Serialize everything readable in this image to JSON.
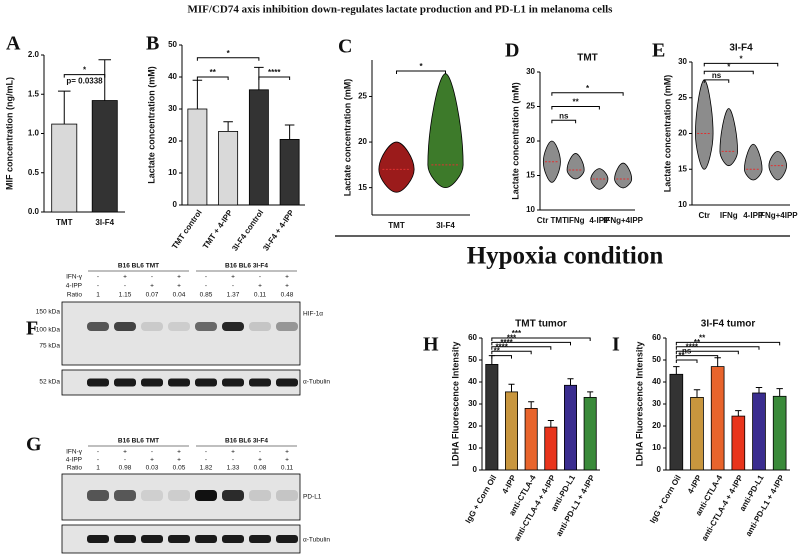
{
  "title": "MIF/CD74 axis inhibition down-regulates lactate production and PD-L1 in melanoma cells",
  "section_label": "Hypoxia condition",
  "panel_labels": [
    "A",
    "B",
    "C",
    "D",
    "E",
    "F",
    "G",
    "H",
    "I"
  ],
  "chart_data": [
    {
      "type": "bar",
      "ylabel": "MIF concentration (ng/mL)",
      "categories": [
        "TMT",
        "3I-F4"
      ],
      "values": [
        1.12,
        1.42
      ],
      "errors": [
        0.42,
        0.52
      ],
      "colors": [
        "#d9d9d9",
        "#333333"
      ],
      "ylim": [
        0,
        2
      ],
      "yticks": [
        {
          "value": 0,
          "label": "0.0"
        },
        0.5,
        {
          "value": 1,
          "label": "1.0"
        },
        1.5,
        {
          "value": 2,
          "label": "2.0"
        }
      ],
      "annotations": [
        "*",
        "p= 0.0338"
      ]
    },
    {
      "type": "bar",
      "ylabel": "Lactate concentration (mM)",
      "categories": [
        "TMT control",
        "TMT + 4-IPP",
        "3I-F4 control",
        "3I-F4 + 4-IPP"
      ],
      "values": [
        30,
        23,
        36,
        20.5
      ],
      "errors": [
        9,
        3,
        7,
        4.5
      ],
      "colors": [
        "#d9d9d9",
        "#d9d9d9",
        "#333333",
        "#333333"
      ],
      "ylim": [
        0,
        50
      ],
      "yticks": [
        0,
        10,
        20,
        30,
        40,
        50
      ],
      "annotations": [
        "**",
        "*",
        "****"
      ]
    },
    {
      "type": "violin",
      "ylabel": "Lactate concentration (mM)",
      "categories": [
        "TMT",
        "3I-F4"
      ],
      "min": [
        14.5,
        15
      ],
      "median": [
        17,
        17.5
      ],
      "max": [
        20,
        27.5
      ],
      "colors": [
        "#9b1b1b",
        "#3d7a2a"
      ],
      "ylim": [
        12,
        29
      ],
      "yticks": [
        15,
        20,
        25
      ],
      "annotations": [
        "*"
      ]
    },
    {
      "type": "violin",
      "title": "TMT",
      "ylabel": "Lactate concentration (mM)",
      "categories": [
        "Ctr TMT",
        "IFNg",
        "4-IPP",
        "IFNg+4IPP"
      ],
      "min": [
        14,
        14.5,
        13,
        13.2
      ],
      "median": [
        17,
        15.8,
        14.5,
        14.5
      ],
      "max": [
        20,
        18.2,
        16,
        16.8
      ],
      "colors": [
        "#8c8c8c",
        "#8c8c8c",
        "#8c8c8c",
        "#8c8c8c"
      ],
      "ylim": [
        10,
        30
      ],
      "yticks": [
        10,
        15,
        20,
        25,
        30
      ],
      "annotations": [
        "ns",
        "**",
        "*"
      ]
    },
    {
      "type": "violin",
      "title": "3I-F4",
      "ylabel": "Lactate concentration (mM)",
      "categories": [
        "Ctr",
        "IFNg",
        "4-IPP",
        "IFNg+4IPP"
      ],
      "min": [
        15,
        15.5,
        13.5,
        13.5
      ],
      "median": [
        20,
        17.5,
        15,
        15.5
      ],
      "max": [
        27.5,
        23.5,
        18.5,
        17.5
      ],
      "colors": [
        "#8c8c8c",
        "#8c8c8c",
        "#8c8c8c",
        "#8c8c8c"
      ],
      "ylim": [
        10,
        30
      ],
      "yticks": [
        10,
        15,
        20,
        25,
        30
      ],
      "annotations": [
        "ns",
        "*",
        "*"
      ]
    },
    {
      "type": "bar",
      "title": "TMT tumor",
      "ylabel": "LDHA Fluorescence Intensity",
      "categories": [
        "IgG + Corn Oil",
        "4-IPP",
        "anti-CTLA-4",
        "anti-CTLA-4 + 4-IPP",
        "anti-PD-L1",
        "anti-PD-L1 + 4-IPP"
      ],
      "values": [
        48,
        35.5,
        28,
        19.5,
        38.5,
        33
      ],
      "errors": [
        4,
        3.5,
        3,
        3,
        3,
        2.5
      ],
      "colors": [
        "#333333",
        "#c8963e",
        "#e8642c",
        "#e8341c",
        "#3a2d8f",
        "#3a8a3a"
      ],
      "ylim": [
        0,
        60
      ],
      "yticks": [
        0,
        10,
        20,
        30,
        40,
        50,
        60
      ],
      "annotations": [
        "**",
        "****",
        "****",
        "***",
        "***"
      ]
    },
    {
      "type": "bar",
      "title": "3I-F4 tumor",
      "ylabel": "LDHA Fluorescence Intensity",
      "categories": [
        "IgG + Corn Oil",
        "4-IPP",
        "anti-CTLA-4",
        "anti-CTLA-4 + 4-IPP",
        "anti-PD-L1",
        "anti-PD-L1 + 4-IPP"
      ],
      "values": [
        43.5,
        33,
        47,
        24.5,
        35,
        33.5
      ],
      "errors": [
        3.5,
        3.5,
        4,
        2.5,
        2.5,
        3.5
      ],
      "colors": [
        "#333333",
        "#c8963e",
        "#e8642c",
        "#e8341c",
        "#3a2d8f",
        "#3a8a3a"
      ],
      "ylim": [
        0,
        60
      ],
      "yticks": [
        0,
        10,
        20,
        30,
        40,
        50,
        60
      ],
      "annotations": [
        "**",
        "ns",
        "****",
        "**",
        "**"
      ]
    }
  ],
  "blots": [
    {
      "groups": [
        "B16 BL6 TMT",
        "B16 BL6 3I-F4"
      ],
      "rows": [
        {
          "label": "IFN-γ",
          "lanes": [
            "-",
            "+",
            "-",
            "+",
            "-",
            "+",
            "-",
            "+"
          ]
        },
        {
          "label": "4-IPP",
          "lanes": [
            "-",
            "-",
            "+",
            "+",
            "-",
            "-",
            "+",
            "+"
          ]
        },
        {
          "label": "Ratio",
          "lanes": [
            1,
            1.15,
            0.07,
            0.04,
            0.85,
            1.37,
            0.11,
            0.48
          ]
        }
      ],
      "markers": [
        "150 kDa",
        "100 kDa",
        "75 kDa",
        "52 kDa"
      ],
      "bands": [
        "HIF-1α",
        "α-Tubulin"
      ]
    },
    {
      "groups": [
        "B16 BL6 TMT",
        "B16 BL6 3I-F4"
      ],
      "rows": [
        {
          "label": "IFN-γ",
          "lanes": [
            "-",
            "+",
            "-",
            "+",
            "-",
            "+",
            "-",
            "+"
          ]
        },
        {
          "label": "4-IPP",
          "lanes": [
            "-",
            "-",
            "+",
            "+",
            "-",
            "-",
            "+",
            "+"
          ]
        },
        {
          "label": "Ratio",
          "lanes": [
            1,
            0.98,
            0.03,
            0.05,
            1.82,
            1.33,
            0.08,
            0.11
          ]
        }
      ],
      "markers": [],
      "bands": [
        "PD-L1",
        "α-Tubulin"
      ]
    }
  ]
}
